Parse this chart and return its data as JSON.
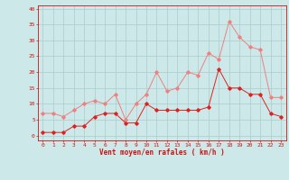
{
  "x": [
    0,
    1,
    2,
    3,
    4,
    5,
    6,
    7,
    8,
    9,
    10,
    11,
    12,
    13,
    14,
    15,
    16,
    17,
    18,
    19,
    20,
    21,
    22,
    23
  ],
  "mean_wind": [
    1,
    1,
    1,
    3,
    3,
    6,
    7,
    7,
    4,
    4,
    10,
    8,
    8,
    8,
    8,
    8,
    9,
    21,
    15,
    15,
    13,
    13,
    7,
    6
  ],
  "gust_wind": [
    7,
    7,
    6,
    8,
    10,
    11,
    10,
    13,
    5,
    10,
    13,
    20,
    14,
    15,
    20,
    19,
    26,
    24,
    36,
    31,
    28,
    27,
    12,
    12
  ],
  "mean_color": "#dd2222",
  "gust_color": "#f08080",
  "bg_color": "#cce8e8",
  "grid_color": "#aacccc",
  "xlabel": "Vent moyen/en rafales ( km/h )",
  "xlabel_color": "#cc1111",
  "tick_color": "#cc1111",
  "yticks": [
    0,
    5,
    10,
    15,
    20,
    25,
    30,
    35,
    40
  ],
  "xticks": [
    0,
    1,
    2,
    3,
    4,
    5,
    6,
    7,
    8,
    9,
    10,
    11,
    12,
    13,
    14,
    15,
    16,
    17,
    18,
    19,
    20,
    21,
    22,
    23
  ],
  "ylim": [
    -1.5,
    41
  ],
  "xlim": [
    -0.5,
    23.5
  ]
}
